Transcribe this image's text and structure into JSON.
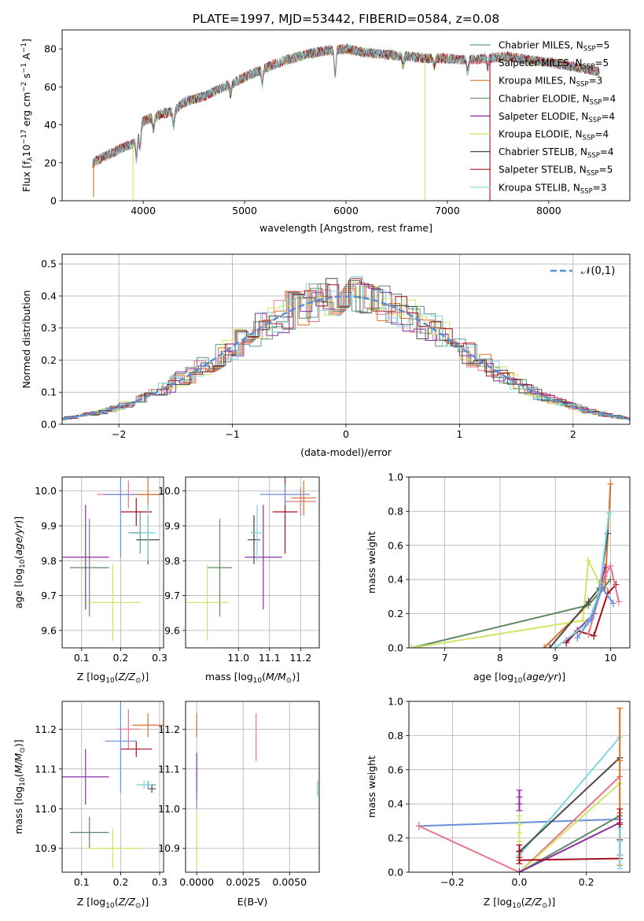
{
  "figure": {
    "title": "PLATE=1997, MJD=53442, FIBERID=0584, z=0.08"
  },
  "colors": {
    "chabrier_miles": "#5b9b9b",
    "salpeter_miles": "#e8768a",
    "kroupa_miles": "#d9712a",
    "chabrier_elodie": "#5d8a63",
    "salpeter_elodie": "#8c2fa3",
    "kroupa_elodie": "#cfe561",
    "chabrier_stelib": "#4a4a4a",
    "salpeter_stelib": "#a5101e",
    "kroupa_stelib": "#7ed8e0",
    "normal_dashed": "#5b8ed6",
    "blue_extra": "#6b8fd9"
  },
  "chart_data": [
    {
      "id": "spectrum",
      "type": "line",
      "xlabel": "wavelength [Angstrom, rest frame]",
      "ylabel": "Flux [f_λ10^-17 erg cm^-2 s^-1 A^-1]",
      "xlim": [
        3200,
        8800
      ],
      "ylim": [
        0,
        90
      ],
      "xticks": [
        4000,
        5000,
        6000,
        7000,
        8000
      ],
      "yticks": [
        0,
        20,
        40,
        60,
        80
      ],
      "grid": false,
      "legend_position": "top-right",
      "series": [
        {
          "name": "Chabrier MILES, N_SSP=5",
          "label_main": "Chabrier MILES, N",
          "label_sub": "SSP",
          "label_end": "=5",
          "key": "chabrier_miles"
        },
        {
          "name": "Salpeter MILES, N_SSP=5",
          "label_main": "Salpeter MILES, N",
          "label_sub": "SSP",
          "label_end": "=5",
          "key": "salpeter_miles"
        },
        {
          "name": "Kroupa MILES, N_SSP=3",
          "label_main": "Kroupa MILES, N",
          "label_sub": "SSP",
          "label_end": "=3",
          "key": "kroupa_miles"
        },
        {
          "name": "Chabrier ELODIE, N_SSP=4",
          "label_main": "Chabrier ELODIE, N",
          "label_sub": "SSP",
          "label_end": "=4",
          "key": "chabrier_elodie"
        },
        {
          "name": "Salpeter ELODIE, N_SSP=4",
          "label_main": "Salpeter ELODIE, N",
          "label_sub": "SSP",
          "label_end": "=4",
          "key": "salpeter_elodie"
        },
        {
          "name": "Kroupa ELODIE, N_SSP=4",
          "label_main": "Kroupa ELODIE, N",
          "label_sub": "SSP",
          "label_end": "=4",
          "key": "kroupa_elodie"
        },
        {
          "name": "Chabrier STELIB, N_SSP=4",
          "label_main": "Chabrier STELIB, N",
          "label_sub": "SSP",
          "label_end": "=4",
          "key": "chabrier_stelib"
        },
        {
          "name": "Salpeter STELIB, N_SSP=5",
          "label_main": "Salpeter STELIB, N",
          "label_sub": "SSP",
          "label_end": "=5",
          "key": "salpeter_stelib"
        },
        {
          "name": "Kroupa STELIB, N_SSP=3",
          "label_main": "Kroupa STELIB, N",
          "label_sub": "SSP",
          "label_end": "=3",
          "key": "kroupa_stelib"
        }
      ],
      "continuum_points": [
        [
          3500,
          20
        ],
        [
          3650,
          24
        ],
        [
          3800,
          28
        ],
        [
          3900,
          30
        ],
        [
          3950,
          36
        ],
        [
          4000,
          42
        ],
        [
          4100,
          44
        ],
        [
          4200,
          46
        ],
        [
          4300,
          47
        ],
        [
          4400,
          52
        ],
        [
          4600,
          55
        ],
        [
          4800,
          60
        ],
        [
          5000,
          65
        ],
        [
          5200,
          70
        ],
        [
          5400,
          74
        ],
        [
          5600,
          77
        ],
        [
          5800,
          79
        ],
        [
          6000,
          80
        ],
        [
          6200,
          78
        ],
        [
          6400,
          77
        ],
        [
          6600,
          76
        ],
        [
          6800,
          75
        ],
        [
          7000,
          75
        ],
        [
          7200,
          74
        ],
        [
          7400,
          75
        ],
        [
          7600,
          76
        ],
        [
          7800,
          74
        ],
        [
          8000,
          73
        ],
        [
          8200,
          71
        ],
        [
          8400,
          69
        ],
        [
          8500,
          68
        ]
      ],
      "feature_dips": [
        [
          3933,
          -12
        ],
        [
          3968,
          -10
        ],
        [
          4102,
          -6
        ],
        [
          4300,
          -8
        ],
        [
          4861,
          -5
        ],
        [
          5175,
          -8
        ],
        [
          5893,
          -14
        ],
        [
          6563,
          -5
        ],
        [
          6870,
          -4
        ],
        [
          7200,
          -6
        ],
        [
          7400,
          -4
        ]
      ],
      "spikes": [
        {
          "key": "kroupa_elodie",
          "x": 3900,
          "from": 0,
          "to": 30
        },
        {
          "key": "kroupa_elodie",
          "x": 6780,
          "from": 0,
          "to": 74
        },
        {
          "key": "salpeter_stelib",
          "x": 7420,
          "from": 0,
          "to": 74
        },
        {
          "key": "kroupa_miles",
          "x": 3510,
          "from": 2,
          "to": 20
        }
      ]
    },
    {
      "id": "residuals",
      "type": "histogram",
      "xlabel": "(data-model)/error",
      "ylabel": "Normed distribution",
      "xlim": [
        -2.5,
        2.5
      ],
      "ylim": [
        0,
        0.53
      ],
      "xticks": [
        -2,
        -1,
        0,
        1,
        2
      ],
      "yticks": [
        0.0,
        0.1,
        0.2,
        0.3,
        0.4,
        0.5
      ],
      "grid": true,
      "legend_position": "top-right",
      "normal_label": "𝒩(0,1)",
      "bin_width": 0.1
    },
    {
      "id": "age_vs_z",
      "type": "errorbar",
      "xlabel": "Z [log10(Z/Z⊙)]",
      "ylabel": "age  [log10(age/yr)]",
      "xlim": [
        0.05,
        0.31
      ],
      "ylim": [
        9.55,
        10.04
      ],
      "xticks": [
        0.1,
        0.2,
        0.3
      ],
      "yticks": [
        9.6,
        9.7,
        9.8,
        9.9,
        10.0
      ],
      "points": [
        {
          "key": "chabrier_miles",
          "x": 0.25,
          "y": 9.88,
          "xerr": 0.03,
          "yerr": 0.06
        },
        {
          "key": "salpeter_miles",
          "x": 0.22,
          "y": 9.99,
          "xerr": 0.08,
          "yerr": 0.04
        },
        {
          "key": "kroupa_miles",
          "x": 0.27,
          "y": 9.99,
          "xerr": 0.04,
          "yerr": 0.05
        },
        {
          "key": "chabrier_elodie",
          "x": 0.12,
          "y": 9.78,
          "xerr": 0.05,
          "yerr": 0.14
        },
        {
          "key": "salpeter_elodie",
          "x": 0.11,
          "y": 9.81,
          "xerr": 0.06,
          "yerr": 0.15
        },
        {
          "key": "kroupa_elodie",
          "x": 0.18,
          "y": 9.68,
          "xerr": 0.07,
          "yerr": 0.11
        },
        {
          "key": "chabrier_stelib",
          "x": 0.27,
          "y": 9.86,
          "xerr": 0.03,
          "yerr": 0.07
        },
        {
          "key": "salpeter_stelib",
          "x": 0.24,
          "y": 9.94,
          "xerr": 0.04,
          "yerr": 0.04
        },
        {
          "key": "kroupa_stelib",
          "x": 0.27,
          "y": 9.88,
          "xerr": 0.02,
          "yerr": 0.08
        },
        {
          "key": "blue_extra",
          "x": 0.2,
          "y": 9.99,
          "xerr": 0.04,
          "yerr": 0.18
        }
      ]
    },
    {
      "id": "age_vs_mass",
      "type": "errorbar",
      "xlabel": "mass [log10(M/M⊙)]",
      "ylabel": "",
      "xlim": [
        10.83,
        11.26
      ],
      "ylim": [
        9.55,
        10.04
      ],
      "xticks": [
        11.0,
        11.1,
        11.2
      ],
      "yticks": [
        9.6,
        9.7,
        9.8,
        9.9,
        10.0
      ],
      "points": [
        {
          "key": "chabrier_miles",
          "x": 11.05,
          "y": 9.88,
          "xerr": 0.01,
          "yerr": 0.05
        },
        {
          "key": "salpeter_miles",
          "x": 11.2,
          "y": 9.97,
          "xerr": 0.05,
          "yerr": 0.04
        },
        {
          "key": "kroupa_miles",
          "x": 11.21,
          "y": 9.98,
          "xerr": 0.04,
          "yerr": 0.05
        },
        {
          "key": "chabrier_elodie",
          "x": 10.94,
          "y": 9.78,
          "xerr": 0.04,
          "yerr": 0.14
        },
        {
          "key": "salpeter_elodie",
          "x": 11.08,
          "y": 9.81,
          "xerr": 0.06,
          "yerr": 0.15
        },
        {
          "key": "kroupa_elodie",
          "x": 10.9,
          "y": 9.68,
          "xerr": 0.07,
          "yerr": 0.11
        },
        {
          "key": "chabrier_stelib",
          "x": 11.05,
          "y": 9.86,
          "xerr": 0.02,
          "yerr": 0.07
        },
        {
          "key": "salpeter_stelib",
          "x": 11.15,
          "y": 9.94,
          "xerr": 0.04,
          "yerr": 0.12
        },
        {
          "key": "kroupa_stelib",
          "x": 11.06,
          "y": 9.88,
          "xerr": 0.02,
          "yerr": 0.08
        },
        {
          "key": "blue_extra",
          "x": 11.15,
          "y": 9.99,
          "xerr": 0.08,
          "yerr": 0.03
        }
      ]
    },
    {
      "id": "massweight_vs_age",
      "type": "line",
      "xlabel": "age  [log10(age/yr)]",
      "ylabel": "mass weight",
      "xlim": [
        6.35,
        10.35
      ],
      "ylim": [
        0,
        1
      ],
      "xticks": [
        7,
        8,
        9,
        10
      ],
      "yticks": [
        0.0,
        0.2,
        0.4,
        0.6,
        0.8,
        1.0
      ],
      "grid": true,
      "series": [
        {
          "key": "kroupa_miles",
          "x": [
            8.8,
            9.9,
            10.0
          ],
          "y": [
            0.0,
            0.35,
            0.96
          ]
        },
        {
          "key": "chabrier_elodie",
          "x": [
            6.4,
            9.6,
            10.0
          ],
          "y": [
            0.0,
            0.25,
            0.4
          ]
        },
        {
          "key": "salpeter_elodie",
          "x": [
            9.2,
            9.7,
            9.9
          ],
          "y": [
            0.04,
            0.2,
            0.47
          ]
        },
        {
          "key": "kroupa_elodie",
          "x": [
            6.4,
            9.5,
            9.6,
            9.8
          ],
          "y": [
            0.0,
            0.16,
            0.51,
            0.38
          ]
        },
        {
          "key": "chabrier_stelib",
          "x": [
            8.9,
            9.6,
            9.8,
            9.95
          ],
          "y": [
            0.0,
            0.27,
            0.35,
            0.67
          ]
        },
        {
          "key": "salpeter_stelib",
          "x": [
            9.2,
            9.4,
            9.7,
            9.95,
            10.1
          ],
          "y": [
            0.03,
            0.1,
            0.07,
            0.32,
            0.37
          ]
        },
        {
          "key": "kroupa_stelib",
          "x": [
            9.0,
            9.6,
            9.8,
            9.97
          ],
          "y": [
            0.0,
            0.15,
            0.33,
            0.79
          ]
        },
        {
          "key": "salpeter_miles",
          "x": [
            9.6,
            9.9,
            10.0,
            10.15
          ],
          "y": [
            0.08,
            0.42,
            0.48,
            0.27
          ]
        },
        {
          "key": "blue_extra",
          "x": [
            9.4,
            9.65,
            9.85,
            10.05
          ],
          "y": [
            0.06,
            0.17,
            0.35,
            0.26
          ]
        }
      ]
    },
    {
      "id": "mass_vs_z",
      "type": "errorbar",
      "xlabel": "Z [log10(Z/Z⊙)]",
      "ylabel": "mass [log10(M/M⊙)]",
      "xlim": [
        0.05,
        0.31
      ],
      "ylim": [
        10.84,
        11.27
      ],
      "xticks": [
        0.1,
        0.2,
        0.3
      ],
      "yticks": [
        10.9,
        11.0,
        11.1,
        11.2
      ],
      "points": [
        {
          "key": "chabrier_miles",
          "x": 0.27,
          "y": 11.06,
          "xerr": 0.02,
          "yerr": 0.01
        },
        {
          "key": "salpeter_miles",
          "x": 0.22,
          "y": 11.2,
          "xerr": 0.03,
          "yerr": 0.05
        },
        {
          "key": "kroupa_miles",
          "x": 0.27,
          "y": 11.21,
          "xerr": 0.04,
          "yerr": 0.03
        },
        {
          "key": "chabrier_elodie",
          "x": 0.12,
          "y": 10.94,
          "xerr": 0.05,
          "yerr": 0.04
        },
        {
          "key": "salpeter_elodie",
          "x": 0.11,
          "y": 11.08,
          "xerr": 0.06,
          "yerr": 0.07
        },
        {
          "key": "kroupa_elodie",
          "x": 0.18,
          "y": 10.9,
          "xerr": 0.07,
          "yerr": 0.05
        },
        {
          "key": "chabrier_stelib",
          "x": 0.28,
          "y": 11.05,
          "xerr": 0.01,
          "yerr": 0.01
        },
        {
          "key": "salpeter_stelib",
          "x": 0.24,
          "y": 11.15,
          "xerr": 0.04,
          "yerr": 0.02
        },
        {
          "key": "kroupa_stelib",
          "x": 0.26,
          "y": 11.06,
          "xerr": 0.02,
          "yerr": 0.01
        },
        {
          "key": "blue_extra",
          "x": 0.2,
          "y": 11.17,
          "xerr": 0.04,
          "yerr": 0.13
        }
      ]
    },
    {
      "id": "mass_vs_ebv",
      "type": "errorbar",
      "xlabel": "E(B-V)",
      "ylabel": "",
      "xlim": [
        -0.0006,
        0.0066
      ],
      "ylim": [
        10.84,
        11.27
      ],
      "xticks": [
        0.0,
        0.0025,
        0.005
      ],
      "xtick_labels": [
        "0.0000",
        "0.0025",
        "0.0050"
      ],
      "yticks": [
        10.9,
        11.0,
        11.1,
        11.2
      ],
      "points": [
        {
          "key": "kroupa_miles",
          "x": 0.0,
          "y": 11.21,
          "xerr": 0.0,
          "yerr": 0.03
        },
        {
          "key": "salpeter_elodie",
          "x": 0.0,
          "y": 11.08,
          "xerr": 0.0,
          "yerr": 0.06
        },
        {
          "key": "kroupa_elodie",
          "x": 0.0,
          "y": 10.92,
          "xerr": 0.0,
          "yerr": 0.07
        },
        {
          "key": "blue_extra",
          "x": 0.0,
          "y": 11.02,
          "xerr": 0.0,
          "yerr": 0.02
        },
        {
          "key": "salpeter_miles",
          "x": 0.0032,
          "y": 11.18,
          "xerr": 0.0,
          "yerr": 0.06
        },
        {
          "key": "chabrier_miles",
          "x": 0.0065,
          "y": 11.05,
          "xerr": 0.0,
          "yerr": 0.02
        },
        {
          "key": "kroupa_stelib",
          "x": 0.0065,
          "y": 11.05,
          "xerr": 0.0,
          "yerr": 0.02
        }
      ]
    },
    {
      "id": "massweight_vs_z",
      "type": "line",
      "xlabel": "Z [log10(Z/Z⊙)]",
      "ylabel": "mass weight",
      "xlim": [
        -0.33,
        0.33
      ],
      "ylim": [
        0,
        1
      ],
      "xticks": [
        -0.2,
        0.0,
        0.2
      ],
      "yticks": [
        0.0,
        0.2,
        0.4,
        0.6,
        0.8,
        1.0
      ],
      "grid": true,
      "series": [
        {
          "key": "blue_extra",
          "x": [
            -0.3,
            0.3
          ],
          "y": [
            0.27,
            0.31
          ]
        },
        {
          "key": "salpeter_miles",
          "x": [
            -0.3,
            0.0,
            0.3
          ],
          "y": [
            0.27,
            0.0,
            0.56
          ]
        },
        {
          "key": "kroupa_stelib",
          "x": [
            0.0,
            0.3
          ],
          "y": [
            0.1,
            0.79
          ]
        },
        {
          "key": "chabrier_stelib",
          "x": [
            0.0,
            0.3
          ],
          "y": [
            0.12,
            0.67
          ]
        },
        {
          "key": "kroupa_elodie",
          "x": [
            0.0,
            0.3
          ],
          "y": [
            0.0,
            0.52
          ]
        },
        {
          "key": "chabrier_elodie",
          "x": [
            0.0,
            0.3
          ],
          "y": [
            0.0,
            0.33
          ]
        },
        {
          "key": "salpeter_elodie",
          "x": [
            0.0,
            0.3
          ],
          "y": [
            0.0,
            0.29
          ]
        },
        {
          "key": "salpeter_stelib",
          "x": [
            0.0,
            0.3
          ],
          "y": [
            0.07,
            0.08
          ]
        }
      ],
      "vertical_markers": [
        {
          "key": "salpeter_elodie",
          "x": 0.0,
          "y": [
            0.36,
            0.48
          ]
        },
        {
          "key": "kroupa_elodie",
          "x": 0.0,
          "y": [
            0.18,
            0.33
          ]
        },
        {
          "key": "salpeter_stelib",
          "x": 0.0,
          "y": [
            0.05,
            0.16
          ]
        },
        {
          "key": "kroupa_miles",
          "x": 0.3,
          "y": [
            0.04,
            0.96
          ]
        },
        {
          "key": "salpeter_stelib",
          "x": 0.3,
          "y": [
            0.1,
            0.37
          ]
        },
        {
          "key": "kroupa_stelib",
          "x": 0.3,
          "y": [
            0.02,
            0.26
          ]
        }
      ]
    }
  ]
}
